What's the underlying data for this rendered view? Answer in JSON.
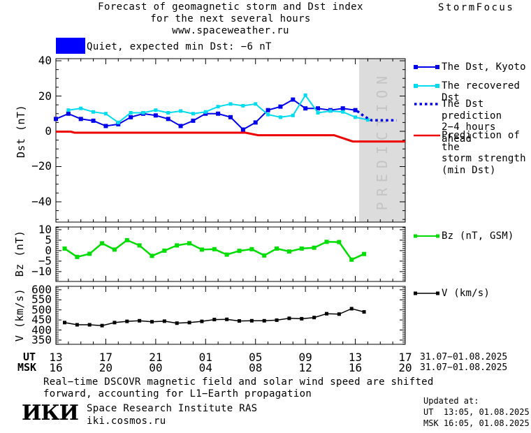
{
  "header": {
    "title_line1": "Forecast of geomagnetic storm and Dst index",
    "title_line2": "for the next several hours",
    "title_line3": "www.spaceweather.ru",
    "brand": "StormFocus"
  },
  "status": {
    "label": "Quiet, expected min Dst: −6 nT"
  },
  "legend": {
    "dst_kyoto": "The Dst, Kyoto",
    "recovered": "The recovered Dst",
    "prediction_line1": "The Dst prediction",
    "prediction_line2": "2−4 hours ahead",
    "storm_line1": "Prediction of the",
    "storm_line2": "storm strength",
    "storm_line3": "(min Dst)",
    "bz": "Bz (nT, GSM)",
    "v": "V (km/s)"
  },
  "axes": {
    "dst_label": "Dst (nT)",
    "bz_label": "Bz (nT)",
    "v_label": "V (km/s)",
    "ut_label": "UT",
    "msk_label": "MSK",
    "ut_ticks": [
      "13",
      "17",
      "21",
      "01",
      "05",
      "09",
      "13",
      "17"
    ],
    "msk_ticks": [
      "16",
      "20",
      "00",
      "04",
      "08",
      "12",
      "16",
      "20"
    ],
    "date_range_ut": "31.07−01.08.2025",
    "date_range_msk": "31.07−01.08.2025"
  },
  "footer": {
    "note_line1": "Real−time DSCOVR magnetic field and solar wind speed are shifted",
    "note_line2": "forward, accounting for L1−Earth propagation",
    "logo": "ИКИ",
    "institute": "Space Research Institute RAS",
    "website": "iki.cosmos.ru",
    "updated_label": "Updated at:",
    "updated_ut": "UT  13:05, 01.08.2025",
    "updated_msk": "MSK 16:05, 01.08.2025"
  },
  "colors": {
    "dst_kyoto": "#0000ee",
    "recovered": "#00dcee",
    "prediction": "#0000ee",
    "storm": "#ee0000",
    "bz": "#00dd00",
    "v": "#000000",
    "band": "#dcdcdc",
    "band_text": "#c4c4c4",
    "quiet_box": "#0000ff"
  },
  "chart_data": [
    {
      "type": "line",
      "name": "dst",
      "ylabel": "Dst (nT)",
      "xlabel": "UT hours 13:00 31.07 to 17:00 01.08",
      "xlim": [
        13,
        41
      ],
      "ylim": [
        -51.5,
        41.2
      ],
      "xticks": [
        13,
        17,
        21,
        25,
        29,
        33,
        37,
        41
      ],
      "xtick_minor": 1,
      "yticks": [
        40,
        20,
        0,
        -20,
        -40
      ],
      "ytick_minor": 5,
      "grid": false,
      "band": {
        "start": 37.3,
        "label": "PREDICTION"
      },
      "series": [
        {
          "name": "The Dst, Kyoto",
          "color": "#0000ee",
          "width": 2,
          "marker": true,
          "msize": 6,
          "x": [
            13,
            14,
            15,
            16,
            17,
            18,
            19,
            20,
            21,
            22,
            23,
            24,
            25,
            26,
            27,
            28,
            29,
            30,
            31,
            32,
            33,
            34,
            35,
            36,
            37
          ],
          "y": [
            7,
            10,
            7,
            6,
            3,
            4,
            8,
            10,
            9,
            7,
            3,
            6,
            10,
            10,
            8,
            1,
            5,
            12,
            14,
            18,
            13,
            13,
            12,
            13,
            12
          ]
        },
        {
          "name": "The recovered Dst",
          "color": "#00dcee",
          "width": 2,
          "marker": true,
          "msize": 5,
          "x": [
            14,
            15,
            16,
            17,
            18,
            19,
            20,
            21,
            22,
            23,
            24,
            25,
            26,
            27,
            28,
            29,
            30,
            31,
            32,
            33,
            34,
            35,
            36,
            37,
            38
          ],
          "y": [
            12,
            13,
            11,
            10,
            5,
            10.5,
            10.5,
            12,
            10.5,
            11.5,
            10,
            11,
            14,
            15.5,
            14.5,
            15.5,
            9.5,
            8,
            9,
            20.5,
            10.5,
            11.5,
            11,
            8,
            6.5
          ]
        },
        {
          "name": "The Dst prediction 2−4 hours ahead",
          "color": "#0000ee",
          "width": 3.5,
          "dash": "3.5 4",
          "x": [
            37.15,
            37.7,
            38.3,
            40.3
          ],
          "y": [
            11.5,
            8.5,
            6.2,
            6.2
          ]
        },
        {
          "name": "Prediction of the storm strength (min Dst)",
          "color": "#ee0000",
          "width": 3,
          "x": [
            13,
            14.2,
            14.5,
            28.2,
            29.2,
            35.3,
            36.8,
            41
          ],
          "y": [
            -0.2,
            -0.2,
            -0.8,
            -0.8,
            -2.2,
            -2.2,
            -5.8,
            -5.8
          ]
        }
      ]
    },
    {
      "type": "line",
      "name": "bz",
      "ylabel": "Bz (nT)",
      "xlim": [
        13,
        41
      ],
      "ylim": [
        -14.7,
        11.3
      ],
      "xticks": [
        13,
        17,
        21,
        25,
        29,
        33,
        37,
        41
      ],
      "xtick_minor": 1,
      "yticks": [
        10,
        5,
        0,
        -5,
        -10
      ],
      "ytick_minor": 1,
      "grid": false,
      "series": [
        {
          "name": "Bz (nT, GSM)",
          "color": "#00dd00",
          "width": 2.5,
          "marker": true,
          "msize": 6,
          "x": [
            13.7,
            14.7,
            15.7,
            16.7,
            17.7,
            18.7,
            19.7,
            20.7,
            21.7,
            22.7,
            23.7,
            24.7,
            25.7,
            26.7,
            27.7,
            28.7,
            29.7,
            30.7,
            31.7,
            32.7,
            33.7,
            34.7,
            35.7,
            36.7,
            37.7
          ],
          "y": [
            1,
            -3,
            -1.5,
            3.5,
            0.5,
            5,
            2.5,
            -2.5,
            0,
            2.5,
            3.5,
            0.5,
            0.7,
            -1.9,
            -0.1,
            0.7,
            -2.3,
            1,
            -0.4,
            1,
            1.4,
            4.2,
            4.1,
            -4.3,
            -1.6
          ]
        }
      ]
    },
    {
      "type": "line",
      "name": "v",
      "ylabel": "V (km/s)",
      "xlim": [
        13,
        41
      ],
      "ylim": [
        329,
        617
      ],
      "xticks": [
        13,
        17,
        21,
        25,
        29,
        33,
        37,
        41
      ],
      "xtick_minor": 1,
      "yticks": [
        600,
        550,
        500,
        450,
        400,
        350
      ],
      "ytick_minor": 10,
      "grid": false,
      "series": [
        {
          "name": "V (km/s)",
          "color": "#000000",
          "width": 1.5,
          "marker": true,
          "msize": 5,
          "x": [
            13.7,
            14.7,
            15.7,
            16.7,
            17.7,
            18.7,
            19.7,
            20.7,
            21.7,
            22.7,
            23.7,
            24.7,
            25.7,
            26.7,
            27.7,
            28.7,
            29.7,
            30.7,
            31.7,
            32.7,
            33.7,
            34.7,
            35.7,
            36.7,
            37.7
          ],
          "y": [
            437,
            426,
            426,
            422,
            437,
            443,
            446,
            441,
            444,
            434,
            437,
            443,
            452,
            453,
            445,
            446,
            446,
            449,
            458,
            456,
            462,
            481,
            479,
            506,
            490
          ]
        }
      ]
    }
  ]
}
